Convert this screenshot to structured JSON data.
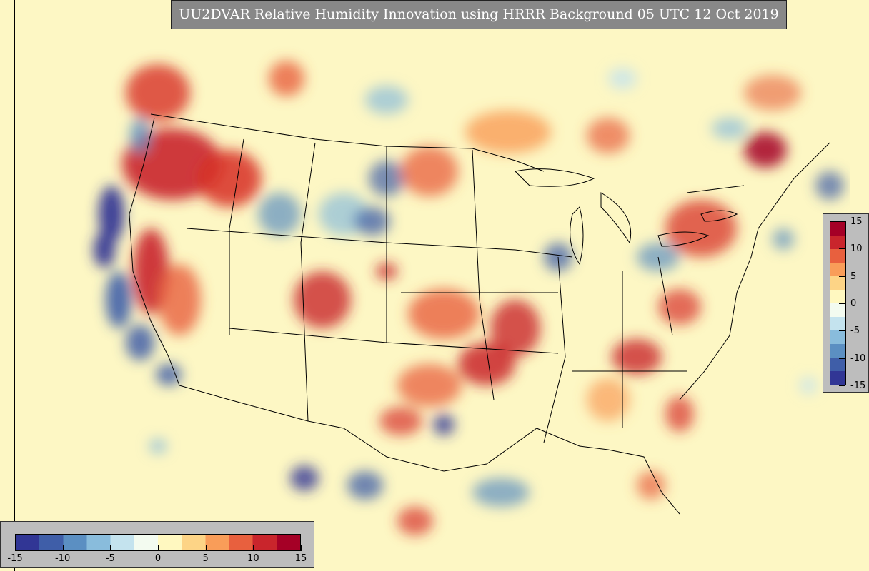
{
  "title": "UU2DVAR Relative Humidity Innovation using HRRR Background 05 UTC 12 Oct 2019",
  "map": {
    "region": "CONUS",
    "variable": "Relative Humidity Innovation",
    "background_color": "#fdf7c4",
    "boundary_color": "#000000"
  },
  "colorbar": {
    "min": -15,
    "max": 15,
    "ticks_horizontal": [
      "-15",
      "-10",
      "-5",
      "0",
      "5",
      "10",
      "15"
    ],
    "ticks_vertical": [
      "15",
      "10",
      "5",
      "0",
      "-5",
      "-10",
      "-15"
    ],
    "colors": [
      "#313695",
      "#3f5ea8",
      "#5b8fc2",
      "#89bcdc",
      "#c4e3ee",
      "#f3fbf0",
      "#fff8c0",
      "#fdd486",
      "#f99d59",
      "#e8603e",
      "#c9252c",
      "#a50026"
    ]
  }
}
